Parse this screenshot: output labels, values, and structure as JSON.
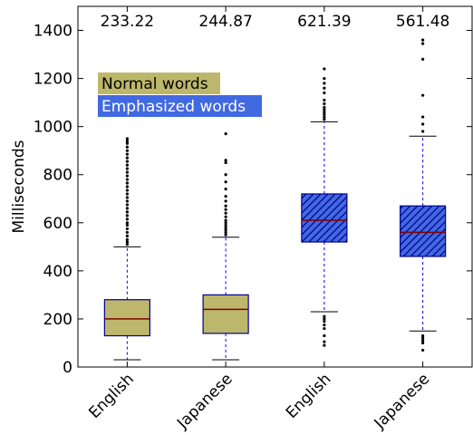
{
  "chart_data": {
    "type": "box",
    "title": "",
    "xlabel": "",
    "ylabel": "Milliseconds",
    "ylim": [
      0,
      1500
    ],
    "yticks": [
      0,
      200,
      400,
      600,
      800,
      1000,
      1200,
      1400
    ],
    "grid": false,
    "legend": {
      "placement": "top-left",
      "entries": [
        {
          "label": "Normal words",
          "color": "#bdb76b"
        },
        {
          "label": "Emphasized words",
          "color": "#4169e1"
        }
      ]
    },
    "categories": [
      "English",
      "Japanese",
      "English",
      "Japanese"
    ],
    "boxes": [
      {
        "category": "English",
        "group": "Normal words",
        "mean_label": "233.22",
        "whisker_low": 30,
        "q1": 130,
        "median": 200,
        "q3": 280,
        "whisker_high": 500,
        "outliers": [
          510,
          520,
          530,
          545,
          560,
          575,
          590,
          600,
          615,
          630,
          645,
          660,
          675,
          690,
          705,
          720,
          735,
          750,
          765,
          780,
          795,
          810,
          825,
          840,
          855,
          870,
          885,
          900,
          915,
          930,
          940,
          950
        ]
      },
      {
        "category": "Japanese",
        "group": "Normal words",
        "mean_label": "244.87",
        "whisker_low": 30,
        "q1": 140,
        "median": 240,
        "q3": 300,
        "whisker_high": 540,
        "outliers": [
          550,
          560,
          570,
          580,
          590,
          600,
          610,
          625,
          640,
          655,
          670,
          690,
          710,
          740,
          770,
          800,
          850,
          860,
          970
        ]
      },
      {
        "category": "English",
        "group": "Emphasized words",
        "mean_label": "621.39",
        "whisker_low": 230,
        "q1": 520,
        "median": 610,
        "q3": 720,
        "whisker_high": 1020,
        "outliers": [
          90,
          105,
          130,
          160,
          175,
          190,
          200,
          210,
          1030,
          1040,
          1050,
          1060,
          1070,
          1080,
          1095,
          1110,
          1140,
          1160,
          1180,
          1200,
          1240
        ]
      },
      {
        "category": "Japanese",
        "group": "Emphasized words",
        "mean_label": "561.48",
        "whisker_low": 150,
        "q1": 460,
        "median": 560,
        "q3": 670,
        "whisker_high": 960,
        "outliers": [
          70,
          100,
          110,
          120,
          130,
          980,
          1010,
          1040,
          1130,
          1280,
          1345,
          1360
        ]
      }
    ],
    "colors": {
      "normal_fill": "#bdb76b",
      "emphasized_fill": "#4169e1",
      "box_edge": "#00008b",
      "median": "#800000",
      "whisker": "#0000ff",
      "outlier": "#000000",
      "legend_normal_text": "#000000",
      "legend_emphasized_text": "#ffffff"
    }
  }
}
